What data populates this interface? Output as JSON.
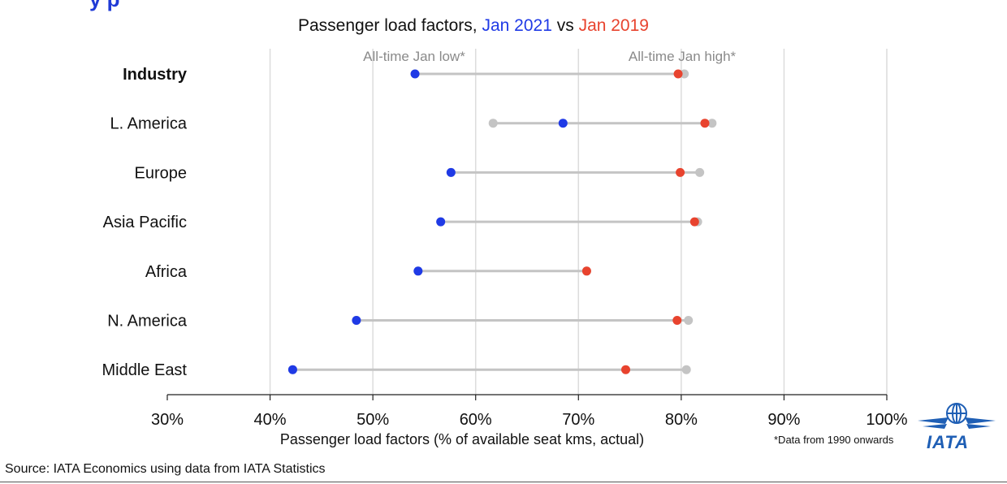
{
  "header": {
    "title_partial": "y                                                                p"
  },
  "subtitle": {
    "prefix": "Passenger load factors, ",
    "series_a": "Jan 2021",
    "mid": " vs ",
    "series_b": "Jan 2019"
  },
  "colors": {
    "jan2021": "#1f3ae6",
    "jan2019": "#e8432e",
    "range": "#c4c4c4",
    "extreme_label": "#8a8a8a",
    "logo": "#1f5fb5"
  },
  "chart_data": {
    "type": "dumbbell",
    "title": "Passenger load factors, Jan 2021 vs Jan 2019",
    "xlabel": "Passenger load factors (% of available seat kms, actual)",
    "xlim": [
      30,
      100
    ],
    "x_ticks": [
      "30%",
      "40%",
      "50%",
      "60%",
      "70%",
      "80%",
      "90%",
      "100%"
    ],
    "x_tick_values": [
      30,
      40,
      50,
      60,
      70,
      80,
      90,
      100
    ],
    "grid": true,
    "annotations": [
      "All-time Jan low*",
      "All-time Jan high*"
    ],
    "categories": [
      "Industry",
      "L. America",
      "Europe",
      "Asia Pacific",
      "Africa",
      "N. America",
      "Middle East"
    ],
    "bold_categories": [
      "Industry"
    ],
    "series": [
      {
        "name": "All-time Jan low*",
        "values": [
          54.1,
          61.7,
          57.6,
          56.6,
          54.4,
          48.4,
          42.2
        ]
      },
      {
        "name": "All-time Jan high*",
        "values": [
          80.3,
          83.0,
          81.8,
          81.6,
          70.8,
          80.7,
          80.5
        ]
      },
      {
        "name": "Jan 2021",
        "values": [
          54.1,
          68.5,
          57.6,
          56.6,
          54.4,
          48.4,
          42.2
        ]
      },
      {
        "name": "Jan 2019",
        "values": [
          79.7,
          82.3,
          79.9,
          81.3,
          70.8,
          79.6,
          74.6
        ]
      }
    ]
  },
  "footnote": "*Data from 1990 onwards",
  "source": "Source: IATA Economics using data from IATA Statistics",
  "logo": {
    "text": "IATA"
  }
}
